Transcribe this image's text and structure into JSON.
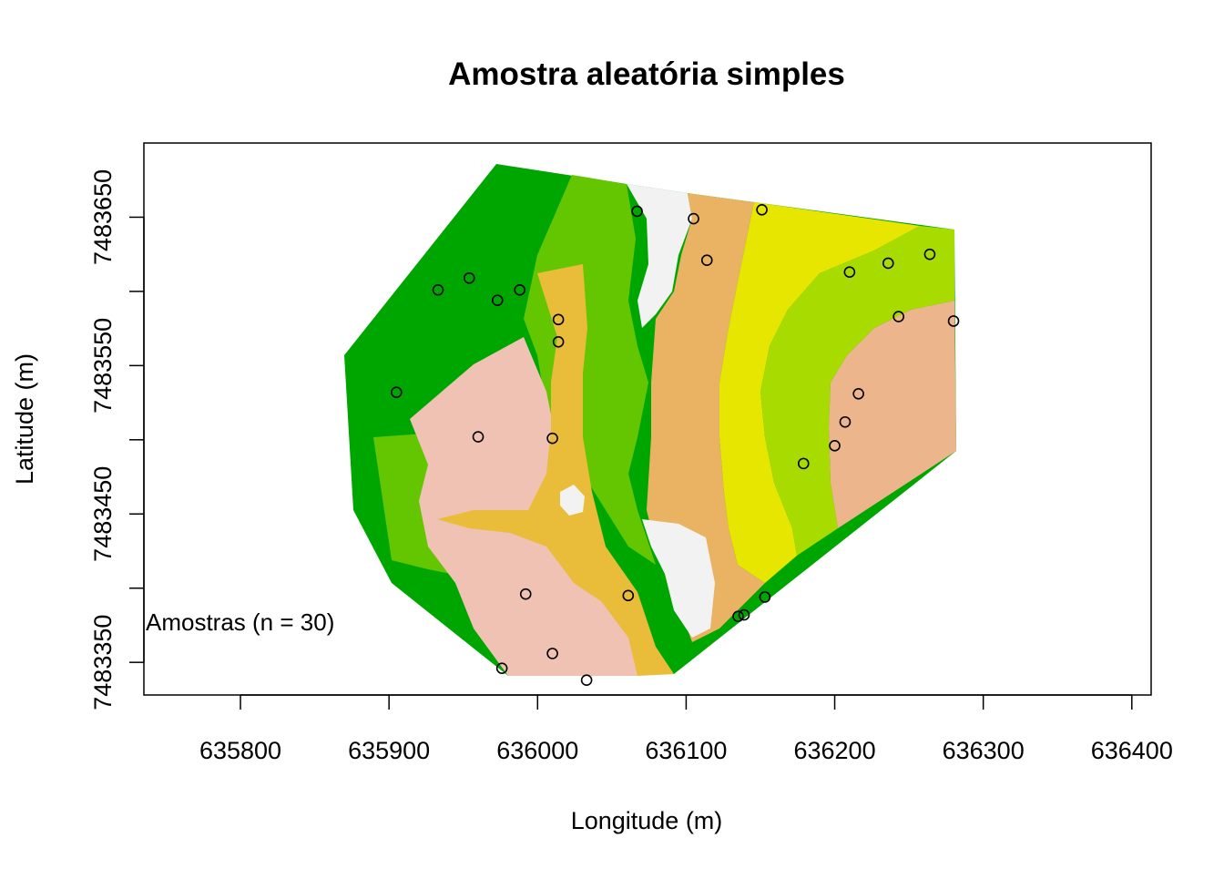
{
  "chart_data": {
    "type": "scatter",
    "title": "Amostra aleatória simples",
    "xlabel": "Longitude (m)",
    "ylabel": "Latitude (m)",
    "xlim": [
      635735,
      636413
    ],
    "ylim": [
      7483328,
      7483700
    ],
    "xticks": [
      635800,
      635900,
      636000,
      636100,
      636200,
      636300,
      636400
    ],
    "xtick_labels": [
      "635800",
      "635900",
      "636000",
      "636100",
      "636200",
      "636300",
      "636400"
    ],
    "yticks": [
      7483350,
      7483400,
      7483450,
      7483500,
      7483550,
      7483600,
      7483650
    ],
    "ytick_labels": [
      "7483350",
      "",
      "7483450",
      "",
      "7483550",
      "",
      "7483650"
    ],
    "grid": false,
    "annotation": "Amostras (n = 30)",
    "background_map": {
      "type": "categorical raster",
      "colors": [
        "#00a600",
        "#24b300",
        "#63c600",
        "#a8db00",
        "#e6e600",
        "#e9bd3a",
        "#ecb176",
        "#efc2b3",
        "#f2f2f2"
      ]
    },
    "series": [
      {
        "marker": "open circle",
        "x": [
          635933,
          635954,
          635973,
          635988,
          636014,
          636014,
          635905,
          635960,
          636010,
          636067,
          636105,
          636114,
          636151,
          636210,
          636236,
          636264,
          636243,
          636280,
          636216,
          636207,
          636200,
          636179,
          635992,
          636061,
          636153,
          636135,
          636139,
          636010,
          635976,
          636033
        ],
        "y": [
          7483601,
          7483609,
          7483594,
          7483601,
          7483581,
          7483566,
          7483532,
          7483502,
          7483501,
          7483654,
          7483649,
          7483621,
          7483655,
          7483613,
          7483619,
          7483625,
          7483583,
          7483580,
          7483531,
          7483512,
          7483496,
          7483484,
          7483396,
          7483395,
          7483394,
          7483381,
          7483382,
          7483356,
          7483346,
          7483338
        ]
      }
    ]
  }
}
